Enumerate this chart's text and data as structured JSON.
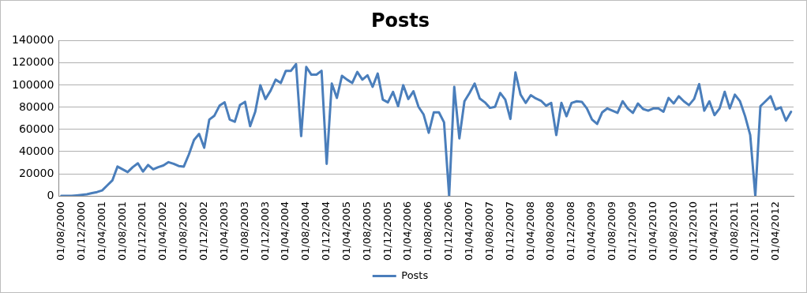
{
  "chart_data": {
    "type": "line",
    "title": "Posts",
    "categories": [
      "01/08/2000",
      null,
      null,
      null,
      "01/12/2000",
      null,
      null,
      null,
      "01/04/2001",
      null,
      null,
      null,
      "01/08/2001",
      null,
      null,
      null,
      "01/12/2001",
      null,
      null,
      null,
      "01/04/2002",
      null,
      null,
      null,
      "01/08/2002",
      null,
      null,
      null,
      "01/12/2002",
      null,
      null,
      null,
      "01/04/2003",
      null,
      null,
      null,
      "01/08/2003",
      null,
      null,
      null,
      "01/12/2003",
      null,
      null,
      null,
      "01/04/2004",
      null,
      null,
      null,
      "01/08/2004",
      null,
      null,
      null,
      "01/12/2004",
      null,
      null,
      null,
      "01/04/2005",
      null,
      null,
      null,
      "01/08/2005",
      null,
      null,
      null,
      "01/12/2005",
      null,
      null,
      null,
      "01/04/2006",
      null,
      null,
      null,
      "01/08/2006",
      null,
      null,
      null,
      "01/12/2006",
      null,
      null,
      null,
      "01/04/2007",
      null,
      null,
      null,
      "01/08/2007",
      null,
      null,
      null,
      "01/12/2007",
      null,
      null,
      null,
      "01/04/2008",
      null,
      null,
      null,
      "01/08/2008",
      null,
      null,
      null,
      "01/12/2008",
      null,
      null,
      null,
      "01/04/2009",
      null,
      null,
      null,
      "01/08/2009",
      null,
      null,
      null,
      "01/12/2009",
      null,
      null,
      null,
      "01/04/2010",
      null,
      null,
      null,
      "01/08/2010",
      null,
      null,
      null,
      "01/12/2010",
      null,
      null,
      null,
      "01/04/2011",
      null,
      null,
      null,
      "01/08/2011",
      null,
      null,
      null,
      "01/12/2011",
      null,
      null,
      null,
      "01/04/2012",
      null,
      null,
      null
    ],
    "series": [
      {
        "name": "Posts",
        "color": "#4a7ebb",
        "values": [
          0,
          0,
          0,
          500,
          1000,
          1500,
          2500,
          3500,
          5000,
          9500,
          14000,
          26500,
          24000,
          21500,
          26000,
          29500,
          22000,
          28000,
          24000,
          26000,
          27500,
          30500,
          29000,
          27000,
          26500,
          37500,
          50500,
          56000,
          43500,
          69000,
          72500,
          81500,
          84500,
          69000,
          67000,
          82000,
          85000,
          63000,
          76000,
          100000,
          87500,
          95000,
          105000,
          102000,
          113000,
          113000,
          119000,
          54000,
          116500,
          109500,
          109500,
          113000,
          29000,
          101500,
          88500,
          108500,
          105000,
          102000,
          112000,
          105000,
          109000,
          98500,
          110500,
          87000,
          84500,
          94000,
          81000,
          100000,
          87500,
          94500,
          80500,
          73500,
          57000,
          75500,
          75500,
          66500,
          0,
          98500,
          52000,
          85500,
          93000,
          101500,
          88000,
          84500,
          79500,
          80500,
          93000,
          87000,
          69500,
          111500,
          91500,
          84000,
          91000,
          88000,
          86000,
          81500,
          84000,
          55000,
          84000,
          72000,
          84000,
          85500,
          85000,
          79000,
          69000,
          65000,
          75500,
          79000,
          77000,
          75000,
          85500,
          79000,
          75000,
          83500,
          78500,
          77000,
          79000,
          79000,
          76000,
          88500,
          83500,
          90000,
          85500,
          82000,
          87500,
          101000,
          77000,
          85500,
          73000,
          79000,
          94000,
          79000,
          91500,
          85500,
          72000,
          55000,
          0,
          81000,
          85500,
          90000,
          78000,
          80000,
          68000,
          76000
        ]
      }
    ],
    "ylim": [
      0,
      140000
    ],
    "yticks": [
      0,
      20000,
      40000,
      60000,
      80000,
      100000,
      120000,
      140000
    ],
    "grid": "y",
    "legend": "bottom",
    "marker": "none",
    "line_style": "solid"
  }
}
